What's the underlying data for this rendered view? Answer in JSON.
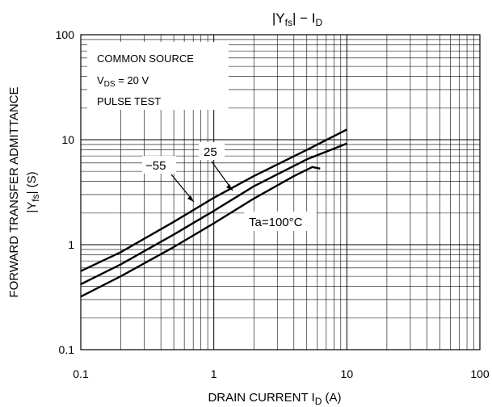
{
  "chart_data": {
    "type": "line",
    "title": {
      "bar1": "|",
      "y": "Y",
      "y_sub": "fs",
      "bar2": "|",
      "dash": " − ",
      "i": "I",
      "i_sub": "D"
    },
    "xlabel": {
      "text": "DRAIN CURRENT",
      "sym": "I",
      "sym_sub": "D",
      "unit": "(A)"
    },
    "ylabel": {
      "text": "FORWARD TRANSFER ADMITTANCE",
      "sym_bar1": "|",
      "sym": "Y",
      "sym_sub": "fs",
      "sym_bar2": "|",
      "unit": "(S)"
    },
    "x_scale": "log",
    "y_scale": "log",
    "xlim": [
      0.1,
      100
    ],
    "ylim": [
      0.1,
      100
    ],
    "x_ticks": [
      "0.1",
      "1",
      "10",
      "100"
    ],
    "y_ticks": [
      "0.1",
      "1",
      "10",
      "100"
    ],
    "grid": true,
    "conditions": {
      "line1": "COMMON SOURCE",
      "line2_main": "V",
      "line2_sub": "DS",
      "line2_val": " = 20 V",
      "line3": "PULSE TEST"
    },
    "series": [
      {
        "name": "−55",
        "x": [
          0.1,
          0.2,
          0.5,
          1,
          2,
          5,
          10
        ],
        "y": [
          0.56,
          0.85,
          1.65,
          2.8,
          4.5,
          8.0,
          12.5
        ]
      },
      {
        "name": "25",
        "x": [
          0.1,
          0.2,
          0.5,
          1,
          2,
          5,
          10
        ],
        "y": [
          0.42,
          0.65,
          1.25,
          2.1,
          3.6,
          6.5,
          9.2
        ]
      },
      {
        "name": "Ta=100°C",
        "x": [
          0.1,
          0.2,
          0.5,
          1,
          2,
          4,
          5.5,
          6.3
        ],
        "y": [
          0.32,
          0.5,
          0.95,
          1.6,
          2.75,
          4.5,
          5.5,
          5.3
        ]
      }
    ],
    "annotations": {
      "m55": "−55",
      "t25": "25",
      "t100": "Ta=100°C"
    }
  }
}
